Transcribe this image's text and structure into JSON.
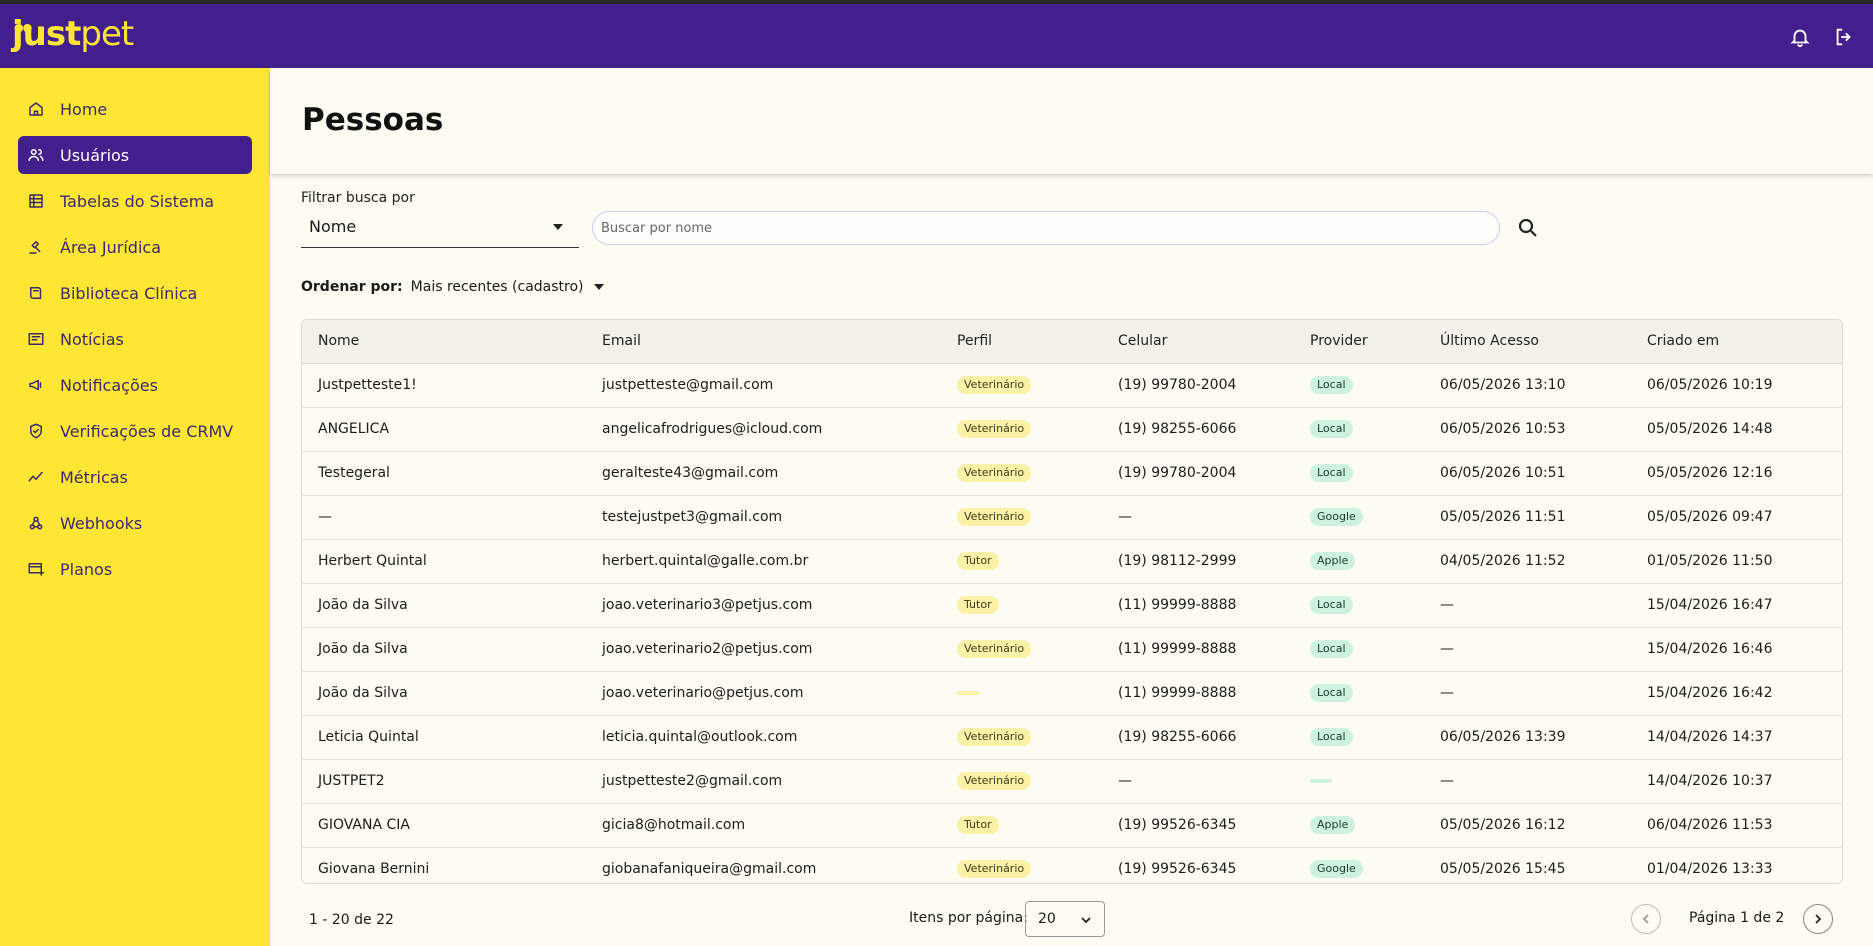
{
  "app": {
    "logo_bold": "just",
    "logo_light": "pet",
    "topbar_icons": [
      "bell-icon",
      "logout-icon"
    ],
    "colors": {
      "brand_purple": "#421f8c",
      "brand_yellow": "#ffe534",
      "chip_yellow": "#fbf2a8",
      "chip_green": "#cdf2df"
    }
  },
  "sidebar": {
    "items": [
      {
        "label": "Home",
        "icon": "home-icon",
        "active": false
      },
      {
        "label": "Usuários",
        "icon": "users-icon",
        "active": true
      },
      {
        "label": "Tabelas do Sistema",
        "icon": "table-icon",
        "active": false
      },
      {
        "label": "Área Jurídica",
        "icon": "gavel-icon",
        "active": false
      },
      {
        "label": "Biblioteca Clínica",
        "icon": "book-icon",
        "active": false
      },
      {
        "label": "Notícias",
        "icon": "news-icon",
        "active": false
      },
      {
        "label": "Notificações",
        "icon": "megaphone-icon",
        "active": false
      },
      {
        "label": "Verificações de CRMV",
        "icon": "shield-check-icon",
        "active": false
      },
      {
        "label": "Métricas",
        "icon": "chart-icon",
        "active": false
      },
      {
        "label": "Webhooks",
        "icon": "webhook-icon",
        "active": false
      },
      {
        "label": "Planos",
        "icon": "plans-icon",
        "active": false
      }
    ]
  },
  "page": {
    "title": "Pessoas"
  },
  "filters": {
    "filter_label": "Filtrar busca por",
    "filter_value": "Nome",
    "search_placeholder": "Buscar por nome",
    "sort_label": "Ordenar por:",
    "sort_value": "Mais recentes (cadastro)"
  },
  "table": {
    "columns": [
      "Nome",
      "Email",
      "Perfil",
      "Celular",
      "Provider",
      "Último Acesso",
      "Criado em"
    ],
    "rows": [
      [
        "Justpetteste1!",
        "justpetteste@gmail.com",
        "Veterinário",
        "(19) 99780-2004",
        "Local",
        "06/05/2026 13:10",
        "06/05/2026 10:19"
      ],
      [
        "ANGELICA",
        "angelicafrodrigues@icloud.com",
        "Veterinário",
        "(19) 98255-6066",
        "Local",
        "06/05/2026 10:53",
        "05/05/2026 14:48"
      ],
      [
        "Testegeral",
        "geralteste43@gmail.com",
        "Veterinário",
        "(19) 99780-2004",
        "Local",
        "06/05/2026 10:51",
        "05/05/2026 12:16"
      ],
      [
        "—",
        "testejustpet3@gmail.com",
        "Veterinário",
        "—",
        "Google",
        "05/05/2026 11:51",
        "05/05/2026 09:47"
      ],
      [
        "Herbert Quintal",
        "herbert.quintal@galle.com.br",
        "Tutor",
        "(19) 98112-2999",
        "Apple",
        "04/05/2026 11:52",
        "01/05/2026 11:50"
      ],
      [
        "João da Silva",
        "joao.veterinario3@petjus.com",
        "Tutor",
        "(11) 99999-8888",
        "Local",
        "—",
        "15/04/2026 16:47"
      ],
      [
        "João da Silva",
        "joao.veterinario2@petjus.com",
        "Veterinário",
        "(11) 99999-8888",
        "Local",
        "—",
        "15/04/2026 16:46"
      ],
      [
        "João da Silva",
        "joao.veterinario@petjus.com",
        "",
        "(11) 99999-8888",
        "Local",
        "—",
        "15/04/2026 16:42"
      ],
      [
        "Leticia Quintal",
        "leticia.quintal@outlook.com",
        "Veterinário",
        "(19) 98255-6066",
        "Local",
        "06/05/2026 13:39",
        "14/04/2026 14:37"
      ],
      [
        "JUSTPET2",
        "justpetteste2@gmail.com",
        "Veterinário",
        "—",
        "",
        "—",
        "14/04/2026 10:37"
      ],
      [
        "GIOVANA CIA",
        "gicia8@hotmail.com",
        "Tutor",
        "(19) 99526-6345",
        "Apple",
        "05/05/2026 16:12",
        "06/04/2026 11:53"
      ],
      [
        "Giovana Bernini",
        "giobanafaniqueira@gmail.com",
        "Veterinário",
        "(19) 99526-6345",
        "Google",
        "05/05/2026 15:45",
        "01/04/2026 13:33"
      ]
    ]
  },
  "pagination": {
    "range": "1 - 20 de 22",
    "items_per_page_label": "Itens por página:",
    "items_per_page": "20",
    "page_label": "Página 1 de 2"
  }
}
